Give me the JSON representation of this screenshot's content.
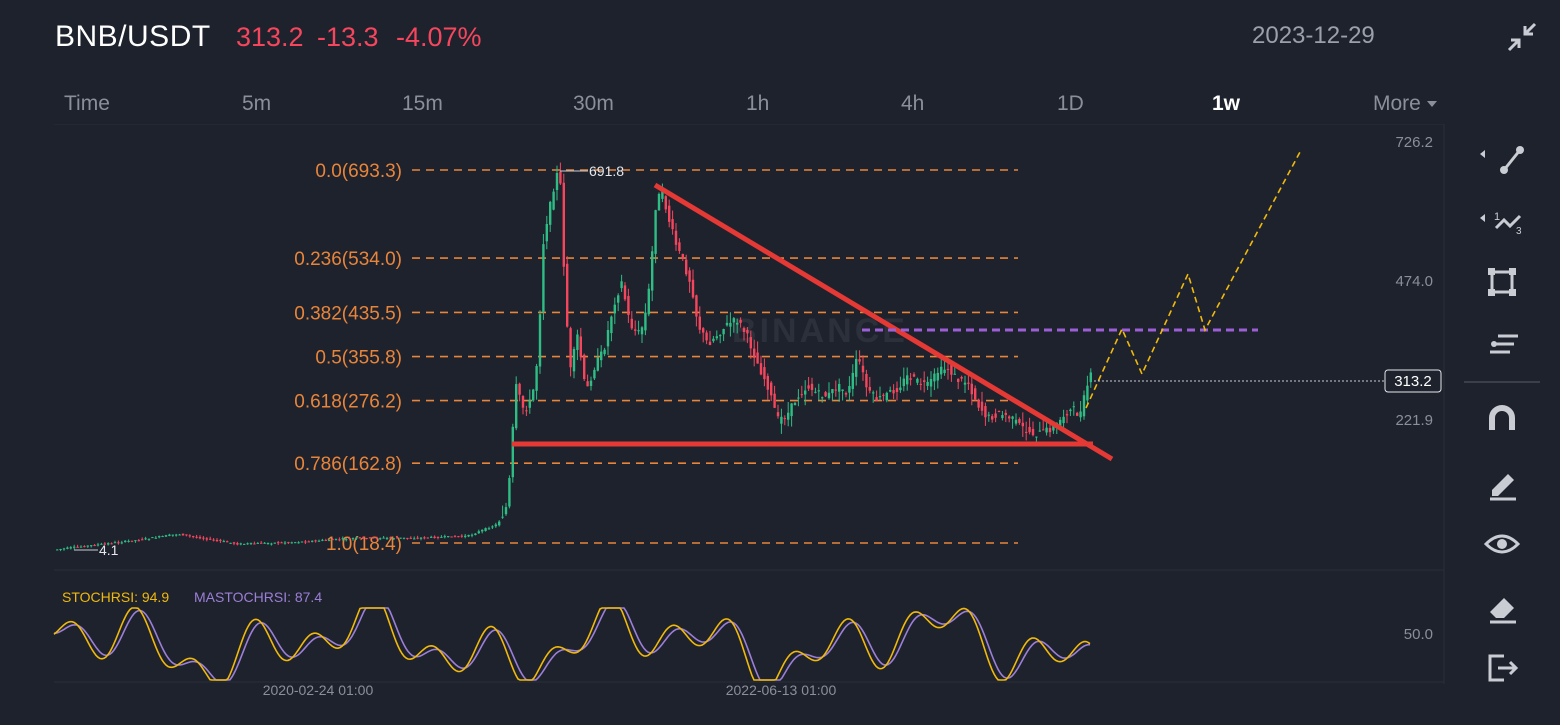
{
  "header": {
    "pair": "BNB/USDT",
    "last_price": "313.2",
    "change": "-13.3",
    "change_pct": "-4.07%",
    "date": "2023-12-29"
  },
  "intervals": [
    {
      "label": "Time",
      "active": false
    },
    {
      "label": "5m",
      "active": false
    },
    {
      "label": "15m",
      "active": false
    },
    {
      "label": "30m",
      "active": false
    },
    {
      "label": "1h",
      "active": false
    },
    {
      "label": "4h",
      "active": false
    },
    {
      "label": "1D",
      "active": false
    },
    {
      "label": "1w",
      "active": true
    },
    {
      "label": "More",
      "active": false
    }
  ],
  "price_axis": [
    "726.2",
    "474.0",
    "313.2",
    "221.9"
  ],
  "last_price_tag": "313.2",
  "fib_levels": [
    {
      "label": "0.0(693.3)",
      "price": 693.3
    },
    {
      "label": "0.236(534.0)",
      "price": 534.0
    },
    {
      "label": "0.382(435.5)",
      "price": 435.5
    },
    {
      "label": "0.5(355.8)",
      "price": 355.8
    },
    {
      "label": "0.618(276.2)",
      "price": 276.2
    },
    {
      "label": "0.786(162.8)",
      "price": 162.8
    },
    {
      "label": "1.0(18.4)",
      "price": 18.4
    }
  ],
  "annotations": {
    "high": "691.8",
    "low": "4.1"
  },
  "watermark": "BINANCE",
  "indicator": {
    "stoch_label": "STOCHRSI: 94.9",
    "ma_label": "MASTOCHRSI: 87.4",
    "axis_value": "50.0"
  },
  "time_axis": [
    "2020-02-24 01:00",
    "2022-06-13 01:00"
  ],
  "colors": {
    "background": "#1e222d",
    "up": "#2ebd85",
    "down": "#f6465d",
    "fib": "#e8853a",
    "trendline": "#e53935",
    "projection": "#f0b90b",
    "resistance": "#9c5fd6",
    "stoch": "#f0b90b",
    "ma": "#9c7fd6"
  },
  "tools": [
    "trendline-icon",
    "polyline-icon",
    "rectangle-icon",
    "fib-icon",
    "magnet-icon",
    "pencil-icon",
    "eye-icon",
    "eraser-icon",
    "exit-icon"
  ]
}
